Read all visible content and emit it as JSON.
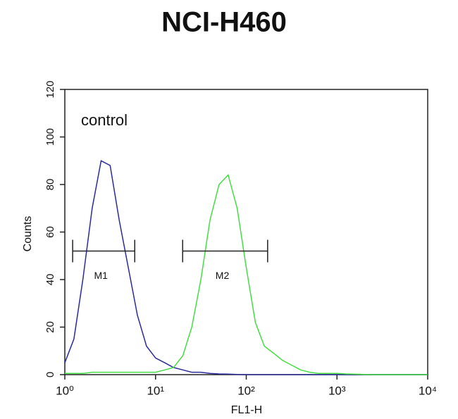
{
  "chart_data": {
    "type": "line",
    "title": "NCI-H460",
    "xlabel": "FL1-H",
    "ylabel": "Counts",
    "xscale": "log",
    "xlim": [
      1,
      10000
    ],
    "xticks": [
      {
        "value": 1,
        "label": "10⁰"
      },
      {
        "value": 10,
        "label": "10¹"
      },
      {
        "value": 100,
        "label": "10²"
      },
      {
        "value": 1000,
        "label": "10³"
      },
      {
        "value": 10000,
        "label": "10⁴"
      }
    ],
    "ylim": [
      0,
      120
    ],
    "yticks": [
      0,
      20,
      40,
      60,
      80,
      100,
      120
    ],
    "annotation": "control",
    "x": [
      1,
      1.26,
      1.58,
      2,
      2.51,
      3.16,
      3.98,
      5.01,
      6.31,
      7.94,
      10,
      12.6,
      15.8,
      20,
      25.1,
      31.6,
      39.8,
      50.1,
      63.1,
      79.4,
      100,
      126,
      158,
      200,
      251,
      316,
      398,
      501,
      631,
      794,
      1000,
      1260,
      1580,
      2000,
      2510,
      3160,
      3980,
      5010,
      6310,
      7940,
      10000
    ],
    "series": [
      {
        "name": "control",
        "color": "#2b2b9a",
        "values": [
          5,
          15,
          40,
          70,
          90,
          88,
          65,
          45,
          25,
          12,
          7,
          5,
          3,
          2,
          1,
          1,
          0.5,
          0.3,
          0.2,
          0.1,
          0,
          0,
          0,
          0,
          0,
          0,
          0,
          0,
          0,
          0,
          0,
          0,
          0,
          0,
          0,
          0,
          0,
          0,
          0,
          0,
          0
        ]
      },
      {
        "name": "NCI-H460",
        "color": "#44dd44",
        "values": [
          0.5,
          0.5,
          0.5,
          1,
          1,
          1,
          1,
          1,
          1,
          1,
          1,
          2,
          3,
          8,
          20,
          40,
          65,
          80,
          84,
          70,
          45,
          22,
          12,
          9,
          6,
          4,
          2,
          1,
          0.5,
          0.5,
          0.5,
          0.3,
          0.2,
          0.1,
          0,
          0,
          0,
          0,
          0,
          0,
          0
        ]
      }
    ],
    "markers": [
      {
        "label": "M1",
        "range": [
          1.22,
          5.9
        ],
        "y": 52
      },
      {
        "label": "M2",
        "range": [
          19.9,
          172
        ],
        "y": 52
      }
    ]
  }
}
